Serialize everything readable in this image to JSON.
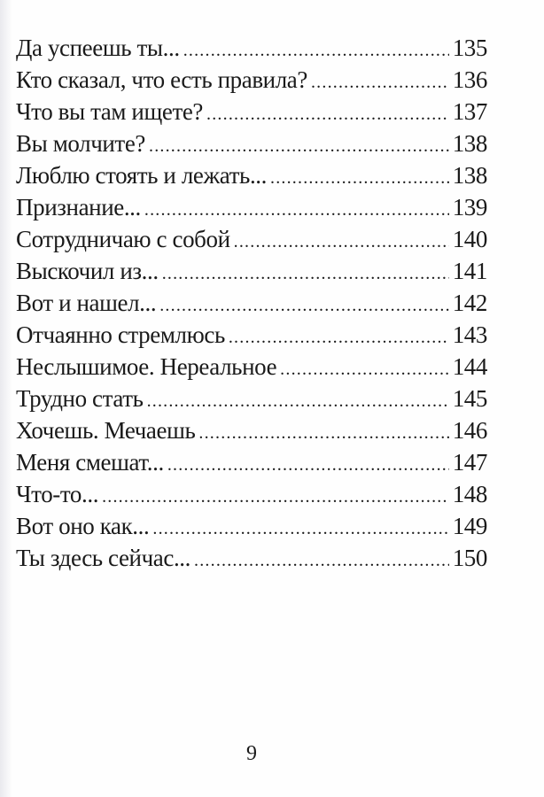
{
  "toc": [
    {
      "title": "Да успеешь ты...",
      "page": "135"
    },
    {
      "title": "Кто сказал, что есть правила?",
      "page": "136"
    },
    {
      "title": "Что вы там ищете?",
      "page": "137"
    },
    {
      "title": "Вы молчите?",
      "page": "138"
    },
    {
      "title": "Люблю стоять и лежать...",
      "page": "138"
    },
    {
      "title": "Признание...",
      "page": "139"
    },
    {
      "title": "Сотрудничаю с собой",
      "page": "140"
    },
    {
      "title": "Выскочил из...",
      "page": "141"
    },
    {
      "title": "Вот и нашел...",
      "page": "142"
    },
    {
      "title": "Отчаянно стремлюсь",
      "page": "143"
    },
    {
      "title": "Неслышимое. Нереальное",
      "page": "144"
    },
    {
      "title": "Трудно стать",
      "page": "145"
    },
    {
      "title": "Хочешь. Мечаешь",
      "page": "146"
    },
    {
      "title": "Меня смешат...",
      "page": "147"
    },
    {
      "title": "Что-то...",
      "page": "148"
    },
    {
      "title": "Вот оно как...",
      "page": "149"
    },
    {
      "title": "Ты здесь сейчас...",
      "page": "150"
    }
  ],
  "page_number": "9"
}
